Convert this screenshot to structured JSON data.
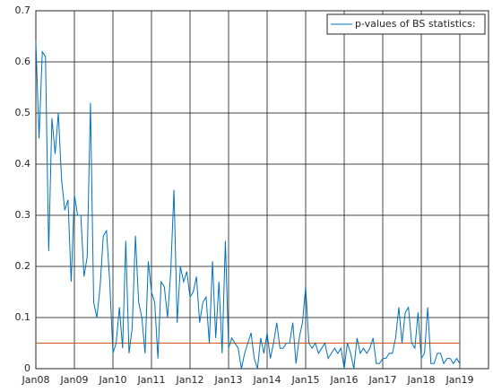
{
  "chart_data": {
    "type": "line",
    "categories": [
      "Jan08",
      null,
      null,
      null,
      null,
      null,
      null,
      null,
      null,
      null,
      null,
      null,
      "Jan09",
      null,
      null,
      null,
      null,
      null,
      null,
      null,
      null,
      null,
      null,
      null,
      "Jan10",
      null,
      null,
      null,
      null,
      null,
      null,
      null,
      null,
      null,
      null,
      null,
      "Jan11",
      null,
      null,
      null,
      null,
      null,
      null,
      null,
      null,
      null,
      null,
      null,
      "Jan12",
      null,
      null,
      null,
      null,
      null,
      null,
      null,
      null,
      null,
      null,
      null,
      "Jan13",
      null,
      null,
      null,
      null,
      null,
      null,
      null,
      null,
      null,
      null,
      null,
      "Jan14",
      null,
      null,
      null,
      null,
      null,
      null,
      null,
      null,
      null,
      null,
      null,
      "Jan15",
      null,
      null,
      null,
      null,
      null,
      null,
      null,
      null,
      null,
      null,
      null,
      "Jan16",
      null,
      null,
      null,
      null,
      null,
      null,
      null,
      null,
      null,
      null,
      null,
      "Jan17",
      null,
      null,
      null,
      null,
      null,
      null,
      null,
      null,
      null,
      null,
      null,
      "Jan18",
      null,
      null,
      null,
      null,
      null,
      null,
      null,
      null,
      null,
      null,
      null,
      "Jan19"
    ],
    "series": [
      {
        "name": "p-values of BS statistics:",
        "color": "#0072bd",
        "values": [
          0.64,
          0.45,
          0.62,
          0.61,
          0.23,
          0.49,
          0.42,
          0.5,
          0.37,
          0.31,
          0.33,
          0.17,
          0.34,
          0.3,
          0.3,
          0.18,
          0.22,
          0.52,
          0.13,
          0.1,
          0.16,
          0.26,
          0.27,
          0.17,
          0.03,
          0.05,
          0.12,
          0.04,
          0.25,
          0.03,
          0.08,
          0.26,
          0.13,
          0.1,
          0.03,
          0.21,
          0.15,
          0.13,
          0.02,
          0.17,
          0.16,
          0.1,
          0.19,
          0.35,
          0.09,
          0.2,
          0.17,
          0.19,
          0.14,
          0.15,
          0.18,
          0.09,
          0.13,
          0.14,
          0.05,
          0.21,
          0.06,
          0.17,
          0.03,
          0.25,
          0.04,
          0.06,
          0.05,
          0.04,
          0.0,
          0.03,
          0.05,
          0.07,
          0.02,
          0.0,
          0.06,
          0.03,
          0.07,
          0.02,
          0.05,
          0.09,
          0.04,
          0.04,
          0.05,
          0.05,
          0.09,
          0.01,
          0.06,
          0.09,
          0.16,
          0.05,
          0.04,
          0.05,
          0.03,
          0.04,
          0.05,
          0.02,
          0.03,
          0.04,
          0.03,
          0.04,
          0.0,
          0.05,
          0.03,
          0.0,
          0.06,
          0.03,
          0.04,
          0.03,
          0.04,
          0.06,
          0.01,
          0.01,
          0.02,
          0.02,
          0.03,
          0.03,
          0.06,
          0.12,
          0.05,
          0.11,
          0.12,
          0.05,
          0.04,
          0.11,
          0.02,
          0.03,
          0.12,
          0.01,
          0.01,
          0.03,
          0.03,
          0.01,
          0.02,
          0.02,
          0.01,
          0.02,
          0.01
        ]
      }
    ],
    "threshold": {
      "value": 0.05,
      "color": "#d95319"
    },
    "ylim": [
      0,
      0.7
    ],
    "yticks": [
      0,
      0.1,
      0.2,
      0.3,
      0.4,
      0.5,
      0.6,
      0.7
    ],
    "grid": true,
    "legend": "top-right"
  }
}
